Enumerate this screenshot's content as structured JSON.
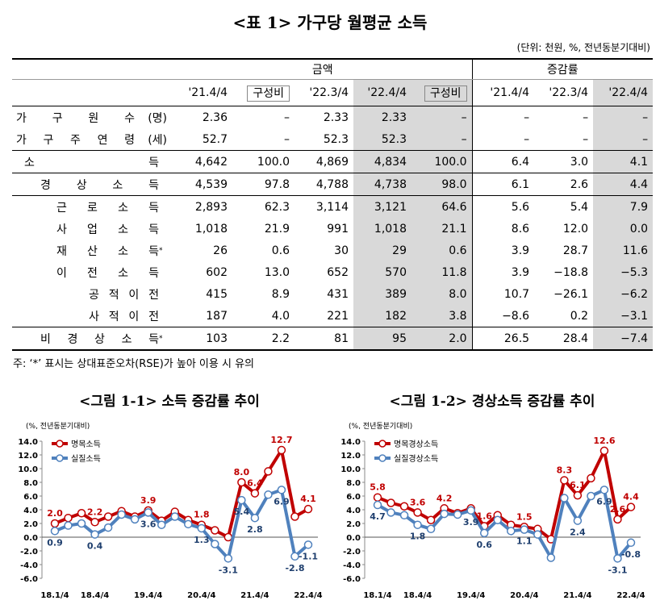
{
  "document": {
    "title": "<표 1> 가구당 월평균 소득",
    "unit": "(단위: 천원, %, 전년동분기대비)",
    "note": "주: ‘*’ 표시는 상대표준오차(RSE)가 높아 이용 시 유의",
    "table": {
      "groups": [
        "금액",
        "증감률"
      ],
      "columns": [
        "'21.4/4",
        "구성비",
        "'22.3/4",
        "'22.4/4",
        "구성비",
        "'21.4/4",
        "'22.3/4",
        "'22.4/4"
      ],
      "rows": [
        {
          "label": "가 구 원 수",
          "unit": "(명)",
          "cells": [
            "2.36",
            "–",
            "2.33",
            "2.33",
            "–",
            "–",
            "–",
            "–"
          ]
        },
        {
          "label": "가 구 주 연 령",
          "unit": "(세)",
          "cells": [
            "52.7",
            "–",
            "52.3",
            "52.3",
            "–",
            "–",
            "–",
            "–"
          ]
        },
        {
          "label": "소 득",
          "cells": [
            "4,642",
            "100.0",
            "4,869",
            "4,834",
            "100.0",
            "6.4",
            "3.0",
            "4.1"
          ]
        },
        {
          "label": "경 상 소 득",
          "cells": [
            "4,539",
            "97.8",
            "4,788",
            "4,738",
            "98.0",
            "6.1",
            "2.6",
            "4.4"
          ]
        },
        {
          "label": "근 로 소 득",
          "cells": [
            "2,893",
            "62.3",
            "3,114",
            "3,121",
            "64.6",
            "5.6",
            "5.4",
            "7.9"
          ]
        },
        {
          "label": "사 업 소 득",
          "cells": [
            "1,018",
            "21.9",
            "991",
            "1,018",
            "21.1",
            "8.6",
            "12.0",
            "0.0"
          ]
        },
        {
          "label": "재 산 소 득",
          "note_mark": "*",
          "cells": [
            "26",
            "0.6",
            "30",
            "29",
            "0.6",
            "3.9",
            "28.7",
            "11.6"
          ]
        },
        {
          "label": "이 전 소 득",
          "cells": [
            "602",
            "13.0",
            "652",
            "570",
            "11.8",
            "3.9",
            "−18.8",
            "−5.3"
          ]
        },
        {
          "label": "공 적 이 전",
          "cells": [
            "415",
            "8.9",
            "431",
            "389",
            "8.0",
            "10.7",
            "−26.1",
            "−6.2"
          ]
        },
        {
          "label": "사 적 이 전",
          "cells": [
            "187",
            "4.0",
            "221",
            "182",
            "3.8",
            "−8.6",
            "0.2",
            "−3.1"
          ]
        },
        {
          "label": "비 경 상 소 득",
          "note_mark": "*",
          "cells": [
            "103",
            "2.2",
            "81",
            "95",
            "2.0",
            "26.5",
            "28.4",
            "−7.4"
          ]
        }
      ]
    }
  },
  "chart_data": [
    {
      "type": "line",
      "title": "<그림 1-1> 소득 증감률 추이",
      "y_label": "(%, 전년동분기대비)",
      "categories": [
        "18.1/4",
        null,
        null,
        "18.4/4",
        null,
        null,
        null,
        "19.4/4",
        null,
        null,
        null,
        "20.4/4",
        null,
        null,
        null,
        "21.4/4",
        null,
        null,
        null,
        "22.4/4"
      ],
      "ylim": [
        -6,
        14
      ],
      "yticks": [
        {
          "value": -6,
          "label": "-6.0"
        },
        {
          "value": -4,
          "label": "-4.0"
        },
        {
          "value": -2,
          "label": "-2.0"
        },
        {
          "value": 0,
          "label": "0.0"
        },
        {
          "value": 2,
          "label": "2.0"
        },
        {
          "value": 4,
          "label": "4.0"
        },
        {
          "value": 6,
          "label": "6.0"
        },
        {
          "value": 8,
          "label": "8.0"
        },
        {
          "value": 10,
          "label": "10.0"
        },
        {
          "value": 12,
          "label": "12.0"
        },
        {
          "value": 14,
          "label": "14.0"
        }
      ],
      "series": [
        {
          "name": "명목소득",
          "color": "#c00000",
          "values": [
            2.0,
            2.8,
            3.5,
            2.2,
            3.0,
            3.8,
            3.0,
            3.9,
            2.4,
            3.7,
            2.5,
            1.8,
            1.0,
            0.0,
            8.0,
            6.4,
            9.6,
            12.7,
            3.0,
            4.1
          ],
          "value_labels": [
            "2.0",
            null,
            null,
            "2.2",
            null,
            null,
            null,
            "3.9",
            null,
            null,
            null,
            "1.8",
            null,
            null,
            "8.0",
            "6.4",
            null,
            "12.7",
            null,
            "4.1"
          ]
        },
        {
          "name": "실질소득",
          "color": "#4f81bd",
          "values": [
            0.9,
            1.7,
            2.0,
            0.4,
            1.4,
            3.3,
            2.6,
            3.6,
            1.8,
            3.0,
            1.9,
            1.3,
            -1.0,
            -3.1,
            5.4,
            2.8,
            6.2,
            6.9,
            -2.8,
            -1.1
          ],
          "value_labels": [
            "0.9",
            null,
            null,
            "0.4",
            null,
            null,
            null,
            "3.6",
            null,
            null,
            null,
            "1.3",
            null,
            "-3.1",
            "5.4",
            "2.8",
            null,
            "6.9",
            "-2.8",
            "-1.1"
          ]
        }
      ]
    },
    {
      "type": "line",
      "title": "<그림 1-2> 경상소득 증감률 추이",
      "y_label": "(%, 전년동분기대비)",
      "categories": [
        "18.1/4",
        null,
        null,
        "18.4/4",
        null,
        null,
        null,
        "19.4/4",
        null,
        null,
        null,
        "20.4/4",
        null,
        null,
        null,
        "21.4/4",
        null,
        null,
        null,
        "22.4/4"
      ],
      "ylim": [
        -6,
        14
      ],
      "yticks": [
        {
          "value": -6,
          "label": "-6.0"
        },
        {
          "value": -4,
          "label": "-4.0"
        },
        {
          "value": -2,
          "label": "-2.0"
        },
        {
          "value": 0,
          "label": "0.0"
        },
        {
          "value": 2,
          "label": "2.0"
        },
        {
          "value": 4,
          "label": "4.0"
        },
        {
          "value": 6,
          "label": "6.0"
        },
        {
          "value": 8,
          "label": "8.0"
        },
        {
          "value": 10,
          "label": "10.0"
        },
        {
          "value": 12,
          "label": "12.0"
        },
        {
          "value": 14,
          "label": "14.0"
        }
      ],
      "series": [
        {
          "name": "명목경상소득",
          "color": "#c00000",
          "values": [
            5.8,
            5.0,
            4.5,
            3.6,
            2.5,
            4.2,
            3.5,
            4.2,
            1.6,
            3.2,
            1.8,
            1.5,
            1.2,
            -0.3,
            8.3,
            6.1,
            8.6,
            12.6,
            2.6,
            4.4
          ],
          "value_labels": [
            "5.8",
            null,
            null,
            "3.6",
            null,
            "4.2",
            null,
            null,
            "1.6",
            null,
            null,
            "1.5",
            null,
            null,
            "8.3",
            "6.1",
            null,
            "12.6",
            "2.6",
            "4.4"
          ]
        },
        {
          "name": "실질경상소득",
          "color": "#4f81bd",
          "values": [
            4.7,
            3.6,
            3.2,
            1.8,
            1.2,
            3.4,
            3.3,
            3.9,
            0.6,
            2.5,
            0.9,
            1.1,
            0.4,
            -3.0,
            5.7,
            2.4,
            6.0,
            6.9,
            -3.1,
            -0.8
          ],
          "value_labels": [
            "4.7",
            null,
            null,
            "1.8",
            null,
            null,
            null,
            "3.9",
            "0.6",
            null,
            null,
            "1.1",
            null,
            null,
            null,
            "2.4",
            null,
            "6.9",
            "-3.1",
            "-0.8"
          ]
        }
      ]
    }
  ]
}
